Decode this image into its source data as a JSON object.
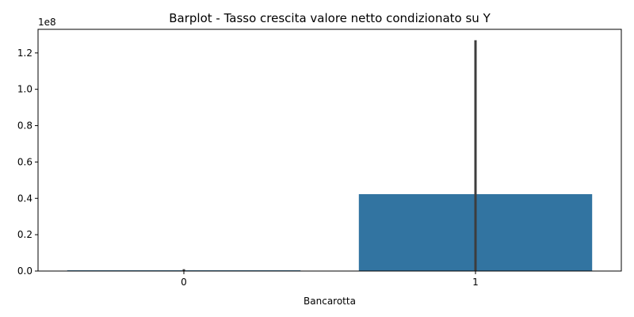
{
  "chart_data": {
    "type": "bar",
    "title": "Barplot - Tasso crescita valore netto condizionato su Y",
    "xlabel": "Bancarotta",
    "ylabel": "",
    "categories": [
      "0",
      "1"
    ],
    "values": [
      400000,
      42300000
    ],
    "error_bars": [
      {
        "low": 0,
        "high": 1000000
      },
      {
        "low": 0,
        "high": 127000000
      }
    ],
    "ylim": [
      0,
      133000000
    ],
    "y_ticks": [
      0,
      20000000,
      40000000,
      60000000,
      80000000,
      100000000,
      120000000
    ],
    "y_tick_labels": [
      "0.0",
      "0.2",
      "0.4",
      "0.6",
      "0.8",
      "1.0",
      "1.2"
    ],
    "y_offset_label": "1e8",
    "grid": false,
    "bar_color": "#3274a1",
    "error_color": "#3d3d3d"
  }
}
